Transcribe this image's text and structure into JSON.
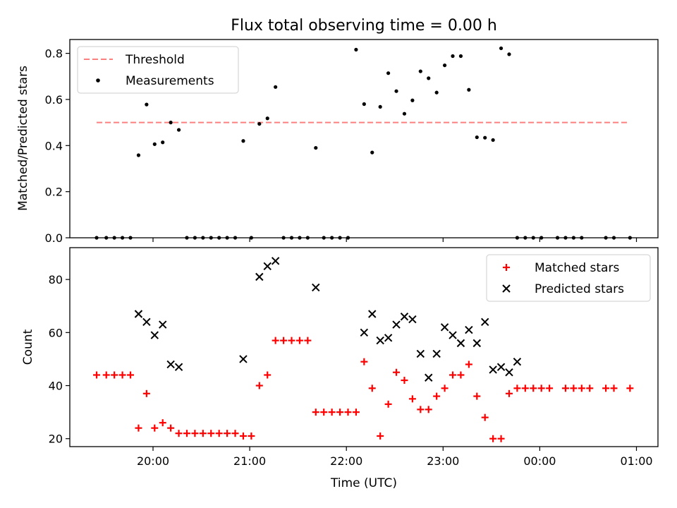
{
  "title": "Flux total observing time = 0.00 h",
  "xlabel": "Time (UTC)",
  "chart_data": [
    {
      "type": "scatter",
      "panel": "top",
      "ylabel": "Matched/Predicted stars",
      "ylim": [
        0,
        0.86
      ],
      "yticks": [
        0.0,
        0.2,
        0.4,
        0.6,
        0.8
      ],
      "ytick_labels": [
        "0.0",
        "0.2",
        "0.4",
        "0.6",
        "0.8"
      ],
      "xticks": [
        "20:00",
        "21:00",
        "22:00",
        "23:00",
        "00:00",
        "01:00"
      ],
      "legend": "upper-left",
      "threshold": {
        "name": "Threshold",
        "value": 0.5,
        "x_range": [
          "19:25",
          "00:55"
        ],
        "color": "#ff7f7f",
        "style": "dashed"
      },
      "series": [
        {
          "name": "Measurements",
          "color": "#000000",
          "marker": "dot",
          "points": [
            [
              "19:25",
              0.0
            ],
            [
              "19:31",
              0.0
            ],
            [
              "19:36",
              0.0
            ],
            [
              "19:41",
              0.0
            ],
            [
              "19:46",
              0.0
            ],
            [
              "19:51",
              0.358
            ],
            [
              "19:56",
              0.578
            ],
            [
              "20:01",
              0.406
            ],
            [
              "20:06",
              0.414
            ],
            [
              "20:11",
              0.5
            ],
            [
              "20:16",
              0.468
            ],
            [
              "20:21",
              0.0
            ],
            [
              "20:26",
              0.0
            ],
            [
              "20:31",
              0.0
            ],
            [
              "20:36",
              0.0
            ],
            [
              "20:41",
              0.0
            ],
            [
              "20:46",
              0.0
            ],
            [
              "20:51",
              0.0
            ],
            [
              "20:56",
              0.42
            ],
            [
              "21:01",
              0.0
            ],
            [
              "21:06",
              0.494
            ],
            [
              "21:11",
              0.518
            ],
            [
              "21:16",
              0.654
            ],
            [
              "21:21",
              0.0
            ],
            [
              "21:26",
              0.0
            ],
            [
              "21:31",
              0.0
            ],
            [
              "21:36",
              0.0
            ],
            [
              "21:41",
              0.39
            ],
            [
              "21:46",
              0.0
            ],
            [
              "21:51",
              0.0
            ],
            [
              "21:56",
              0.0
            ],
            [
              "22:01",
              0.0
            ],
            [
              "22:06",
              0.816
            ],
            [
              "22:11",
              0.58
            ],
            [
              "22:16",
              0.37
            ],
            [
              "22:21",
              0.568
            ],
            [
              "22:26",
              0.714
            ],
            [
              "22:31",
              0.636
            ],
            [
              "22:36",
              0.538
            ],
            [
              "22:41",
              0.596
            ],
            [
              "22:46",
              0.722
            ],
            [
              "22:51",
              0.692
            ],
            [
              "22:56",
              0.63
            ],
            [
              "23:01",
              0.748
            ],
            [
              "23:06",
              0.788
            ],
            [
              "23:11",
              0.788
            ],
            [
              "23:16",
              0.642
            ],
            [
              "23:21",
              0.436
            ],
            [
              "23:26",
              0.434
            ],
            [
              "23:31",
              0.424
            ],
            [
              "23:36",
              0.822
            ],
            [
              "23:41",
              0.796
            ],
            [
              "23:46",
              0.0
            ],
            [
              "23:51",
              0.0
            ],
            [
              "23:56",
              0.0
            ],
            [
              "00:01",
              0.0
            ],
            [
              "00:11",
              0.0
            ],
            [
              "00:16",
              0.0
            ],
            [
              "00:21",
              0.0
            ],
            [
              "00:26",
              0.0
            ],
            [
              "00:41",
              0.0
            ],
            [
              "00:46",
              0.0
            ],
            [
              "00:56",
              0.0
            ]
          ]
        }
      ]
    },
    {
      "type": "scatter",
      "panel": "bottom",
      "ylabel": "Count",
      "ylim": [
        17,
        92
      ],
      "yticks": [
        20,
        40,
        60,
        80
      ],
      "ytick_labels": [
        "20",
        "40",
        "60",
        "80"
      ],
      "xticks": [
        "20:00",
        "21:00",
        "22:00",
        "23:00",
        "00:00",
        "01:00"
      ],
      "xtick_labels": [
        "20:00",
        "21:00",
        "22:00",
        "23:00",
        "00:00",
        "01:00"
      ],
      "legend": "upper-right",
      "series": [
        {
          "name": "Matched stars",
          "color": "#ff0000",
          "marker": "plus",
          "points": [
            [
              "19:25",
              44
            ],
            [
              "19:31",
              44
            ],
            [
              "19:36",
              44
            ],
            [
              "19:41",
              44
            ],
            [
              "19:46",
              44
            ],
            [
              "19:51",
              24
            ],
            [
              "19:56",
              37
            ],
            [
              "20:01",
              24
            ],
            [
              "20:06",
              26
            ],
            [
              "20:11",
              24
            ],
            [
              "20:16",
              22
            ],
            [
              "20:21",
              22
            ],
            [
              "20:26",
              22
            ],
            [
              "20:31",
              22
            ],
            [
              "20:36",
              22
            ],
            [
              "20:41",
              22
            ],
            [
              "20:46",
              22
            ],
            [
              "20:51",
              22
            ],
            [
              "20:56",
              21
            ],
            [
              "21:01",
              21
            ],
            [
              "21:06",
              40
            ],
            [
              "21:11",
              44
            ],
            [
              "21:16",
              57
            ],
            [
              "21:21",
              57
            ],
            [
              "21:26",
              57
            ],
            [
              "21:31",
              57
            ],
            [
              "21:36",
              57
            ],
            [
              "21:41",
              30
            ],
            [
              "21:46",
              30
            ],
            [
              "21:51",
              30
            ],
            [
              "21:56",
              30
            ],
            [
              "22:01",
              30
            ],
            [
              "22:06",
              30
            ],
            [
              "22:11",
              49
            ],
            [
              "22:16",
              39
            ],
            [
              "22:21",
              21
            ],
            [
              "22:26",
              33
            ],
            [
              "22:31",
              45
            ],
            [
              "22:36",
              42
            ],
            [
              "22:41",
              35
            ],
            [
              "22:46",
              31
            ],
            [
              "22:51",
              31
            ],
            [
              "22:56",
              36
            ],
            [
              "23:01",
              39
            ],
            [
              "23:06",
              44
            ],
            [
              "23:11",
              44
            ],
            [
              "23:16",
              48
            ],
            [
              "23:21",
              36
            ],
            [
              "23:26",
              28
            ],
            [
              "23:31",
              20
            ],
            [
              "23:36",
              20
            ],
            [
              "23:41",
              37
            ],
            [
              "23:46",
              39
            ],
            [
              "23:51",
              39
            ],
            [
              "23:56",
              39
            ],
            [
              "00:01",
              39
            ],
            [
              "00:06",
              39
            ],
            [
              "00:16",
              39
            ],
            [
              "00:21",
              39
            ],
            [
              "00:26",
              39
            ],
            [
              "00:31",
              39
            ],
            [
              "00:41",
              39
            ],
            [
              "00:46",
              39
            ],
            [
              "00:56",
              39
            ]
          ]
        },
        {
          "name": "Predicted stars",
          "color": "#000000",
          "marker": "x",
          "points": [
            [
              "19:51",
              67
            ],
            [
              "19:56",
              64
            ],
            [
              "20:01",
              59
            ],
            [
              "20:06",
              63
            ],
            [
              "20:11",
              48
            ],
            [
              "20:16",
              47
            ],
            [
              "20:56",
              50
            ],
            [
              "21:06",
              81
            ],
            [
              "21:11",
              85
            ],
            [
              "21:16",
              87
            ],
            [
              "21:41",
              77
            ],
            [
              "22:11",
              60
            ],
            [
              "22:16",
              67
            ],
            [
              "22:21",
              57
            ],
            [
              "22:26",
              58
            ],
            [
              "22:31",
              63
            ],
            [
              "22:36",
              66
            ],
            [
              "22:41",
              65
            ],
            [
              "22:46",
              52
            ],
            [
              "22:51",
              43
            ],
            [
              "22:56",
              52
            ],
            [
              "23:01",
              62
            ],
            [
              "23:06",
              59
            ],
            [
              "23:11",
              56
            ],
            [
              "23:16",
              61
            ],
            [
              "23:21",
              56
            ],
            [
              "23:26",
              64
            ],
            [
              "23:31",
              46
            ],
            [
              "23:36",
              47
            ],
            [
              "23:41",
              45
            ],
            [
              "23:46",
              49
            ]
          ]
        }
      ]
    }
  ]
}
